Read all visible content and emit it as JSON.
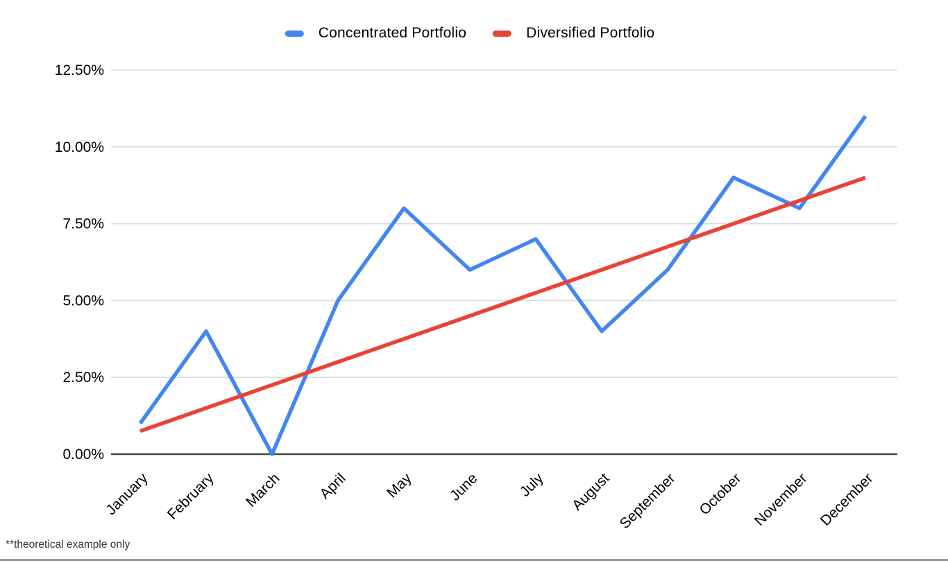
{
  "footnote": "**theoretical example only",
  "chart_data": {
    "type": "line",
    "title": "",
    "xlabel": "",
    "ylabel": "",
    "categories": [
      "January",
      "February",
      "March",
      "April",
      "May",
      "June",
      "July",
      "August",
      "September",
      "October",
      "November",
      "December"
    ],
    "series": [
      {
        "name": "Concentrated Portfolio",
        "color": "#4285F4",
        "values": [
          1.0,
          4.0,
          0.0,
          5.0,
          8.0,
          6.0,
          7.0,
          4.0,
          6.0,
          9.0,
          8.0,
          11.0
        ]
      },
      {
        "name": "Diversified Portfolio",
        "color": "#EA4335",
        "values": [
          0.75,
          1.5,
          2.25,
          3.0,
          3.75,
          4.5,
          5.25,
          6.0,
          6.75,
          7.5,
          8.25,
          9.0
        ]
      }
    ],
    "value_unit": "%",
    "ylim": [
      0,
      12.5
    ],
    "y_ticks": {
      "values": [
        0,
        2.5,
        5,
        7.5,
        10,
        12.5
      ],
      "labels": [
        "0.00%",
        "2.50%",
        "5.00%",
        "7.50%",
        "10.00%",
        "12.50%"
      ]
    },
    "grid": true,
    "legend_position": "top",
    "x_label_rotation_deg": -45,
    "colors": {
      "gridline": "#dadce0",
      "zero_axis": "#424242",
      "axis_text": "#000000"
    }
  }
}
